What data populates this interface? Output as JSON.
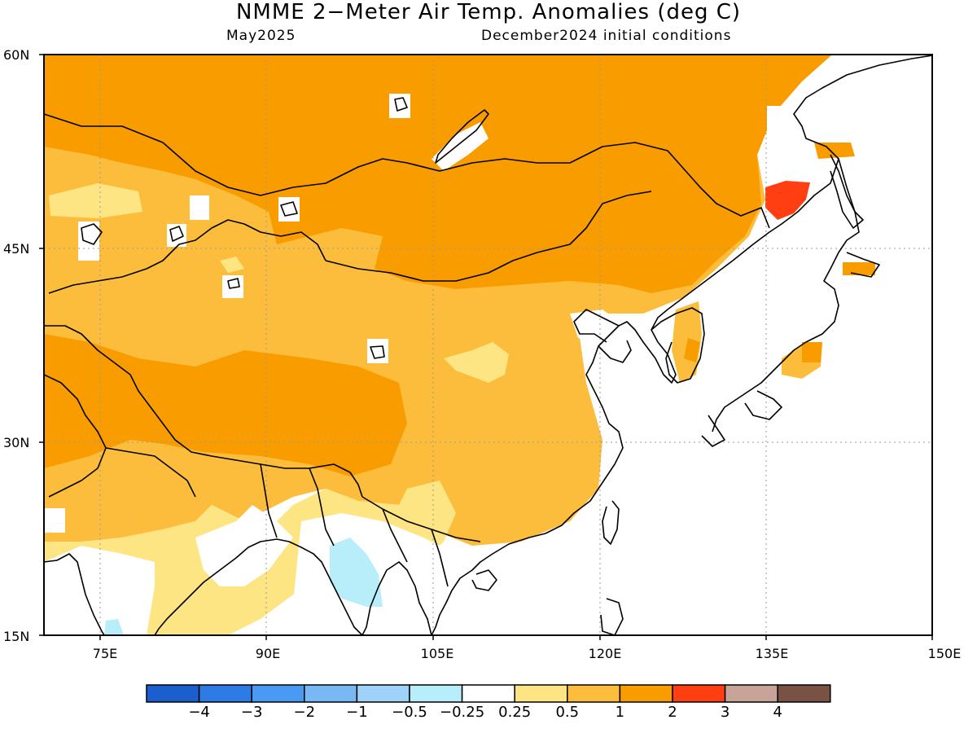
{
  "title": "NMME 2−Meter Air Temp. Anomalies (deg C)",
  "subtitle_left": "May2025",
  "subtitle_right": "December2024 initial conditions",
  "map": {
    "lon_range": [
      70,
      150
    ],
    "lat_range": [
      15,
      60
    ],
    "lat_labels": [
      "60N",
      "45N",
      "30N",
      "15N"
    ],
    "lon_labels": [
      "75E",
      "90E",
      "105E",
      "120E",
      "135E",
      "150E"
    ]
  },
  "colorbar": {
    "colors": [
      "#1b5fcf",
      "#2f7be6",
      "#4a99f2",
      "#79b8f5",
      "#9fd2f8",
      "#b8eefa",
      "#ffffff",
      "#fde583",
      "#fbbd3b",
      "#f99c00",
      "#ff3f12",
      "#c8a398",
      "#7a5244"
    ],
    "labels": [
      "−4",
      "−3",
      "−2",
      "−1",
      "−0.5",
      "−0.25",
      "0.25",
      "0.5",
      "1",
      "2",
      "3",
      "4"
    ]
  },
  "legend_palette": {
    "orange": "#f99c00",
    "light_orange": "#fbbd3b",
    "yellow": "#fde583",
    "red": "#ff3f12",
    "light_blue": "#b8eefa"
  }
}
